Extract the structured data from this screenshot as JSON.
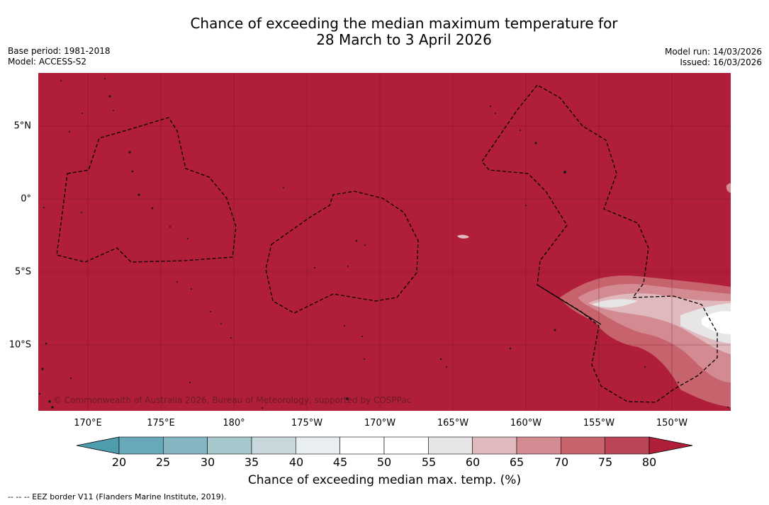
{
  "title": {
    "line1": "Chance of exceeding the median maximum temperature for",
    "line2": "28 March to 3 April 2026"
  },
  "meta": {
    "base_period": "Base period: 1981-2018",
    "model": "Model: ACCESS-S2",
    "model_run": "Model run: 14/03/2026",
    "issued": "Issued: 16/03/2026"
  },
  "map": {
    "credit": "© Commonwealth of Australia 2026, Bureau of Meteorology, supported by COSPPac",
    "lon_labels": [
      "170°E",
      "175°E",
      "180°",
      "175°W",
      "170°W",
      "165°W",
      "160°W",
      "155°W",
      "150°W"
    ],
    "lat_labels": [
      "5°N",
      "0°",
      "5°S",
      "10°S"
    ],
    "dominant_color": "#b11e39"
  },
  "colorbar": {
    "ticks": [
      "20",
      "25",
      "30",
      "35",
      "40",
      "45",
      "50",
      "55",
      "60",
      "65",
      "70",
      "75",
      "80"
    ],
    "colors": [
      "#67a9b9",
      "#86b5c2",
      "#a6c7cc",
      "#c7d7dc",
      "#e9eef1",
      "#ffffff",
      "#ffffff",
      "#e7e5e6",
      "#dfb9bd",
      "#d48a91",
      "#c6636d",
      "#bb4557"
    ],
    "low_color": "#4e9dad",
    "high_color": "#b11e39",
    "label": "Chance of exceeding median max. temp. (%)"
  },
  "footer": "--  --  -- EEZ border V11 (Flanders Marine Institute, 2019)."
}
